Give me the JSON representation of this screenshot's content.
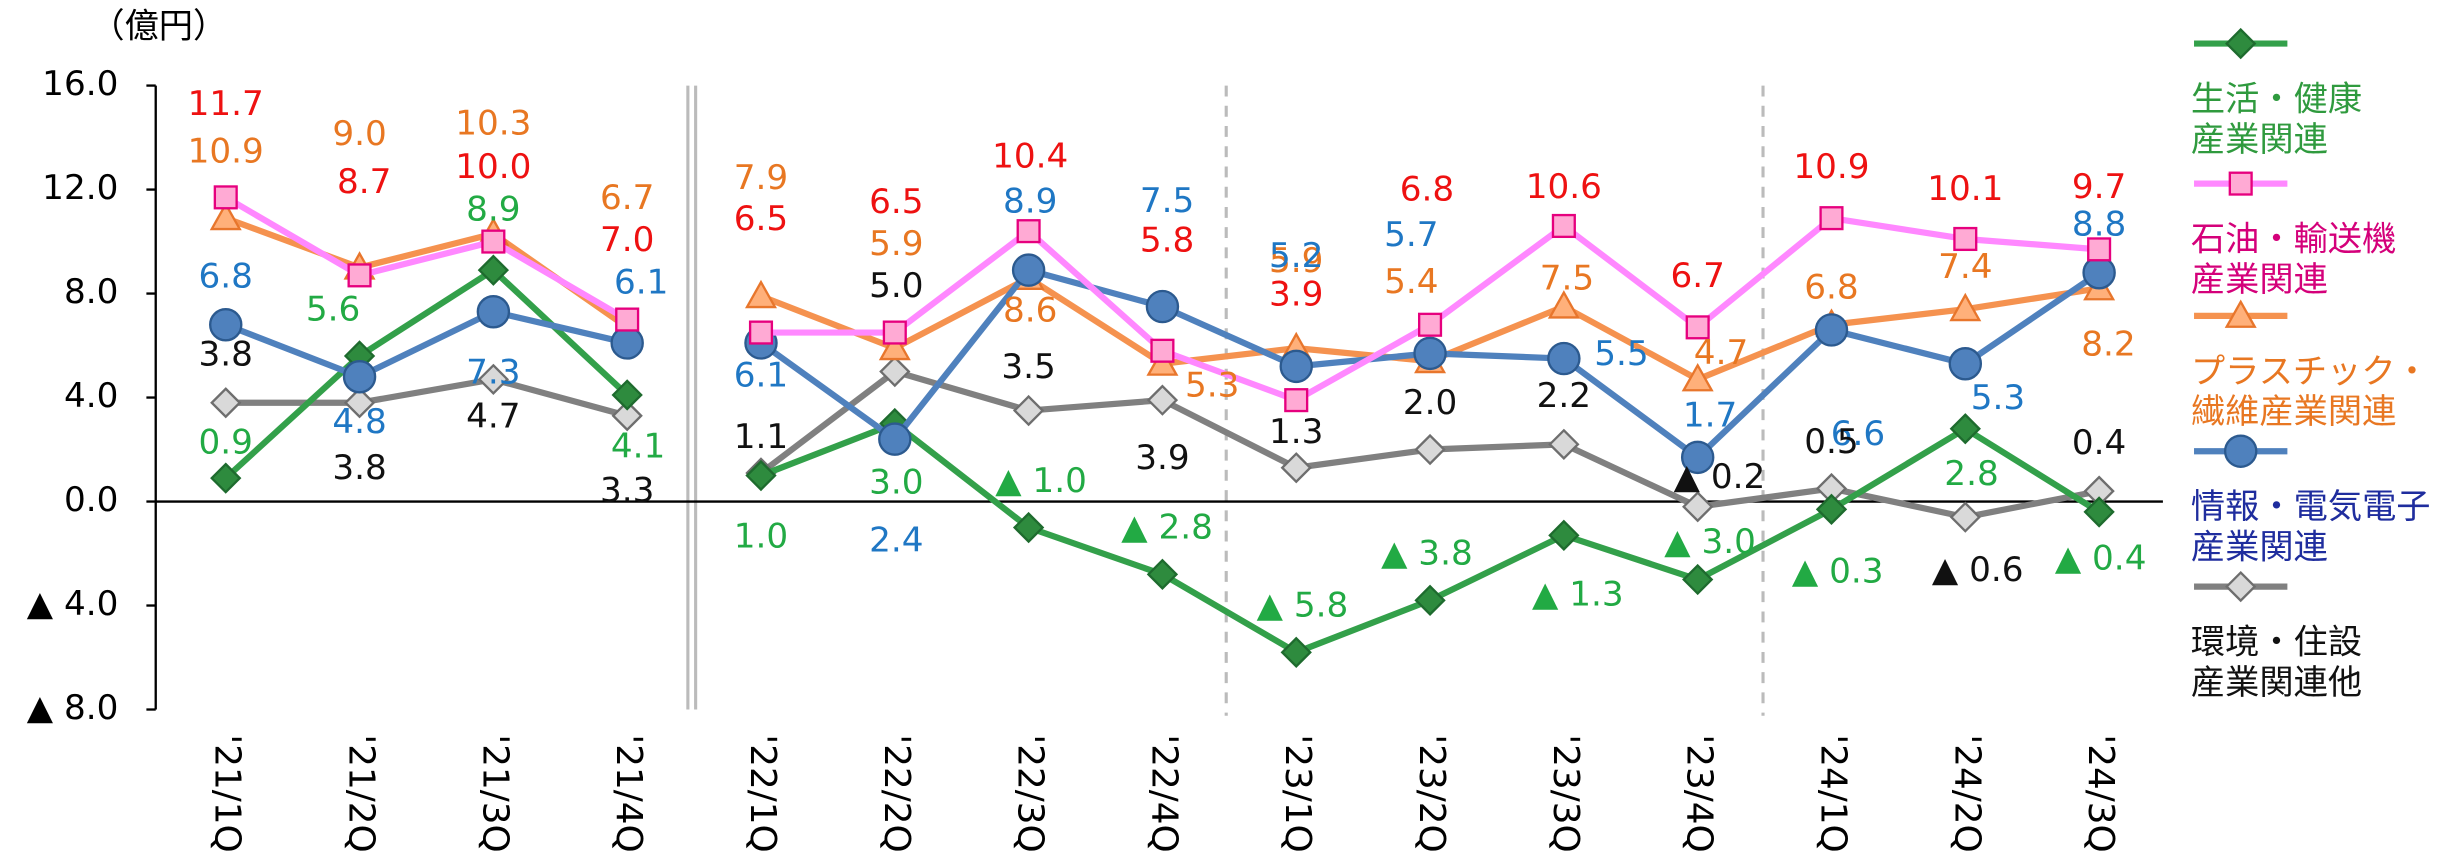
{
  "chart_data": {
    "type": "line",
    "y_unit": "（億円）",
    "categories": [
      "'21/1Q",
      "'21/2Q",
      "'21/3Q",
      "'21/4Q",
      "'22/1Q",
      "'22/2Q",
      "'22/3Q",
      "'22/4Q",
      "'23/1Q",
      "'23/2Q",
      "'23/3Q",
      "'23/4Q",
      "'24/1Q",
      "'24/2Q",
      "'24/3Q"
    ],
    "ylim": [
      -8,
      16
    ],
    "yticks": [
      {
        "value": 16,
        "label": "16.0"
      },
      {
        "value": 12,
        "label": "12.0"
      },
      {
        "value": 8,
        "label": "8.0"
      },
      {
        "value": 4,
        "label": "4.0"
      },
      {
        "value": 0,
        "label": "0.0"
      },
      {
        "value": -4,
        "label": "▲ 4.0"
      },
      {
        "value": -8,
        "label": "▲ 8.0"
      }
    ],
    "series": [
      {
        "name": "生活・健康\n産業関連",
        "color": "#33a04a",
        "marker": "diamond",
        "label_color": "#22aa44",
        "legend_color": "#2f9a3e",
        "values": [
          0.9,
          5.6,
          8.9,
          4.1,
          1.0,
          3.0,
          -1.0,
          -2.8,
          -5.8,
          -3.8,
          -1.3,
          -3.0,
          -0.3,
          2.8,
          -0.4
        ],
        "value_labels": [
          "0.9",
          "5.6",
          "8.9",
          "4.1",
          "1.0",
          "3.0",
          "▲ 1.0",
          "▲ 2.8",
          "▲ 5.8",
          "▲ 3.8",
          "▲ 1.3",
          "▲ 3.0",
          "▲ 0.3",
          "2.8",
          "▲ 0.4"
        ]
      },
      {
        "name": "石油・輸送機\n産業関連",
        "color": "#ff88ff",
        "marker": "square",
        "label_color": "#ee1111",
        "legend_color": "#d4007a",
        "values": [
          11.7,
          8.7,
          10.0,
          7.0,
          6.5,
          6.5,
          10.4,
          5.8,
          3.9,
          6.8,
          10.6,
          6.7,
          10.9,
          10.1,
          9.7
        ],
        "value_labels": [
          "11.7",
          "8.7",
          "10.0",
          "7.0",
          "6.5",
          "6.5",
          "10.4",
          "5.8",
          "3.9",
          "6.8",
          "10.6",
          "6.7",
          "10.9",
          "10.1",
          "9.7"
        ]
      },
      {
        "name": "プラスチック・\n繊維産業関連",
        "color": "#f5924f",
        "marker": "triangle",
        "label_color": "#e87722",
        "legend_color": "#e87722",
        "values": [
          10.9,
          9.0,
          10.3,
          6.7,
          7.9,
          5.9,
          8.6,
          5.3,
          5.9,
          5.4,
          7.5,
          4.7,
          6.8,
          7.4,
          8.2
        ],
        "value_labels": [
          "10.9",
          "9.0",
          "10.3",
          "6.7",
          "7.9",
          "5.9",
          "8.6",
          "5.3",
          "5.9",
          "5.4",
          "7.5",
          "4.7",
          "6.8",
          "7.4",
          "8.2"
        ]
      },
      {
        "name": "情報・電気電子\n産業関連",
        "color": "#4f81bd",
        "marker": "circle",
        "label_color": "#1f77c4",
        "legend_color": "#1f2d9e",
        "values": [
          6.8,
          4.8,
          7.3,
          6.1,
          6.1,
          2.4,
          8.9,
          7.5,
          5.2,
          5.7,
          5.5,
          1.7,
          6.6,
          5.3,
          8.8
        ],
        "value_labels": [
          "6.8",
          "4.8",
          "7.3",
          "6.1",
          "6.1",
          "2.4",
          "8.9",
          "7.5",
          "5.2",
          "5.7",
          "5.5",
          "1.7",
          "6.6",
          "5.3",
          "8.8"
        ]
      },
      {
        "name": "環境・住設\n産業関連他",
        "color": "#808080",
        "marker": "diamond",
        "label_color": "#111111",
        "legend_color": "#111111",
        "values": [
          3.8,
          3.8,
          4.7,
          3.3,
          1.1,
          5.0,
          3.5,
          3.9,
          1.3,
          2.0,
          2.2,
          -0.2,
          0.5,
          -0.6,
          0.4
        ],
        "value_labels": [
          "3.8",
          "3.8",
          "4.7",
          "3.3",
          "1.1",
          "5.0",
          "3.5",
          "3.9",
          "1.3",
          "2.0",
          "2.2",
          "▲ 0.2",
          "0.5",
          "▲ 0.6",
          "0.4"
        ]
      }
    ]
  }
}
